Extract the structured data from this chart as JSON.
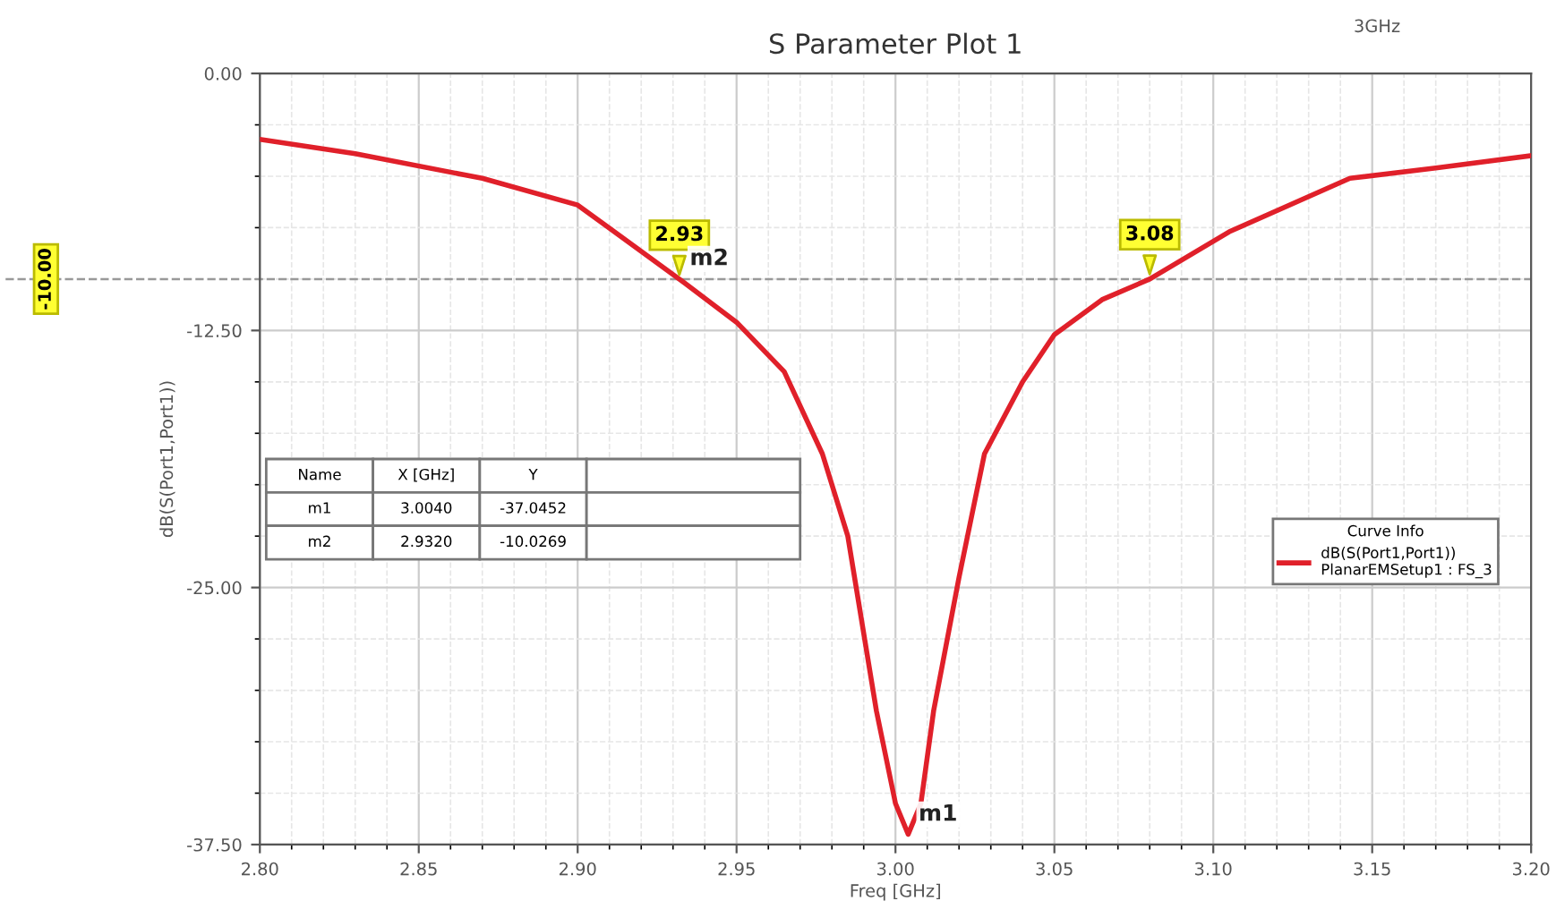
{
  "chart_data": {
    "type": "line",
    "title": "S Parameter Plot 1",
    "subtitle": "3GHz",
    "xlabel": "Freq [GHz]",
    "ylabel": "dB(S(Port1,Port1))",
    "legend_title": "Curve Info",
    "x": [
      2.8,
      2.83,
      2.87,
      2.9,
      2.932,
      2.95,
      2.965,
      2.977,
      2.985,
      2.994,
      3.0,
      3.004,
      3.008,
      3.012,
      3.02,
      3.028,
      3.04,
      3.05,
      3.065,
      3.08,
      3.105,
      3.143,
      3.17,
      3.2
    ],
    "series": [
      {
        "name": "dB(S(Port1,Port1))\nPlanarEMSetup1 : FS_3",
        "color": "#e0202a",
        "values": [
          -3.2,
          -3.9,
          -5.1,
          -6.4,
          -10.0,
          -12.1,
          -14.5,
          -18.5,
          -22.5,
          -31.0,
          -35.5,
          -37.0,
          -35.5,
          -31.0,
          -24.5,
          -18.5,
          -15.0,
          -12.7,
          -11.0,
          -10.0,
          -7.7,
          -5.1,
          -4.6,
          -4.0
        ]
      }
    ],
    "xlim": [
      2.8,
      3.2
    ],
    "xticks": [
      {
        "value": 2.8,
        "label": "2.80"
      },
      2.85,
      {
        "value": 2.9,
        "label": "2.90"
      },
      2.95,
      {
        "value": 3.0,
        "label": "3.00"
      },
      3.05,
      {
        "value": 3.1,
        "label": "3.10"
      },
      3.15,
      {
        "value": 3.2,
        "label": "3.20"
      }
    ],
    "ylim": [
      -37.5,
      0
    ],
    "yticks": [
      {
        "value": -37.5,
        "label": "-37.50"
      },
      {
        "value": -25,
        "label": "-25.00"
      },
      {
        "value": -12.5,
        "label": "-12.50"
      },
      {
        "value": 0,
        "label": "0.00"
      }
    ],
    "grid": true,
    "legend": "right",
    "line_style": "solid",
    "marker": "none",
    "ref_lines": [
      {
        "axis": "y",
        "value": -10,
        "label": "-10.00",
        "color": "#999999",
        "line_style": "dashed"
      }
    ],
    "annotations": [
      {
        "text": "2.93",
        "x": 2.932,
        "y": -10.0269
      },
      {
        "text": "m2",
        "x": 2.932,
        "y": -10.0269
      },
      {
        "text": "3.08",
        "x": 3.08,
        "y": -10.0
      },
      {
        "text": "m1",
        "x": 3.004,
        "y": -37.0452
      },
      "Name",
      "X [GHz]",
      "Y",
      "m1",
      "3.0040",
      "-37.0452",
      "m2",
      "2.9320",
      "-10.0269"
    ]
  }
}
